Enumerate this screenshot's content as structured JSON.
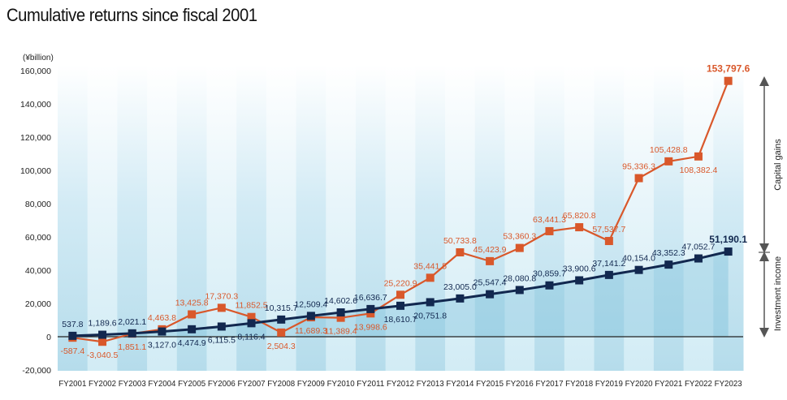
{
  "chart_data": {
    "type": "line",
    "title": "Cumulative returns since fiscal 2001",
    "unit_label": "(¥billion)",
    "categories": [
      "FY2001",
      "FY2002",
      "FY2003",
      "FY2004",
      "FY2005",
      "FY2006",
      "FY2007",
      "FY2008",
      "FY2009",
      "FY2010",
      "FY2011",
      "FY2012",
      "FY2013",
      "FY2014",
      "FY2015",
      "FY2016",
      "FY2017",
      "FY2018",
      "FY2019",
      "FY2020",
      "FY2021",
      "FY2022",
      "FY2023"
    ],
    "ylim": [
      -20000,
      160000
    ],
    "yticks": [
      -20000,
      0,
      20000,
      40000,
      60000,
      80000,
      100000,
      120000,
      140000,
      160000
    ],
    "ytick_labels": [
      "-20,000",
      "0",
      "20,000",
      "40,000",
      "60,000",
      "80,000",
      "100,000",
      "120,000",
      "140,000",
      "160,000"
    ],
    "grid": false,
    "series": [
      {
        "key": "total",
        "color": "#d9582b",
        "values": [
          -587.4,
          -3040.5,
          1851.1,
          4463.8,
          13425.8,
          17370.3,
          11852.5,
          2504.3,
          11689.3,
          11389.4,
          13998.6,
          25220.9,
          35441.5,
          50733.8,
          45423.9,
          53360.3,
          63441.3,
          65820.8,
          57537.7,
          95336.3,
          105428.8,
          108382.4,
          153797.6
        ],
        "labels": [
          "-587.4",
          "-3,040.5",
          "1,851.1",
          "4,463.8",
          "13,425.8",
          "17,370.3",
          "11,852.5",
          "2,504.3",
          "11,689.3",
          "11,389.4",
          "13,998.6",
          "25,220.9",
          "35,441.5",
          "50,733.8",
          "45,423.9",
          "53,360.3",
          "63,441.3",
          "65,820.8",
          "57,537.7",
          "95,336.3",
          "105,428.8",
          "108,382.4",
          "153,797.6"
        ]
      },
      {
        "key": "income",
        "color": "#12284f",
        "values": [
          537.8,
          1189.6,
          2021.1,
          3127.0,
          4474.9,
          6115.5,
          8116.4,
          10315.7,
          12509.4,
          14602.6,
          16636.7,
          18610.7,
          20751.8,
          23005.0,
          25547.4,
          28080.8,
          30859.7,
          33900.6,
          37141.2,
          40154.0,
          43352.3,
          47052.7,
          51190.1
        ],
        "labels": [
          "537.8",
          "1,189.6",
          "2,021.1",
          "3,127.0",
          "4,474.9",
          "6,115.5",
          "8,116.4",
          "10,315.7",
          "12,509.4",
          "14,602.6",
          "16,636.7",
          "18,610.7",
          "20,751.8",
          "23,005.0",
          "25,547.4",
          "28,080.8",
          "30,859.7",
          "33,900.6",
          "37,141.2",
          "40,154.0",
          "43,352.3",
          "47,052.7",
          "51,190.1"
        ]
      }
    ],
    "annotations": {
      "capital_gains": "Capital gains",
      "investment_income": "Investment income"
    }
  }
}
